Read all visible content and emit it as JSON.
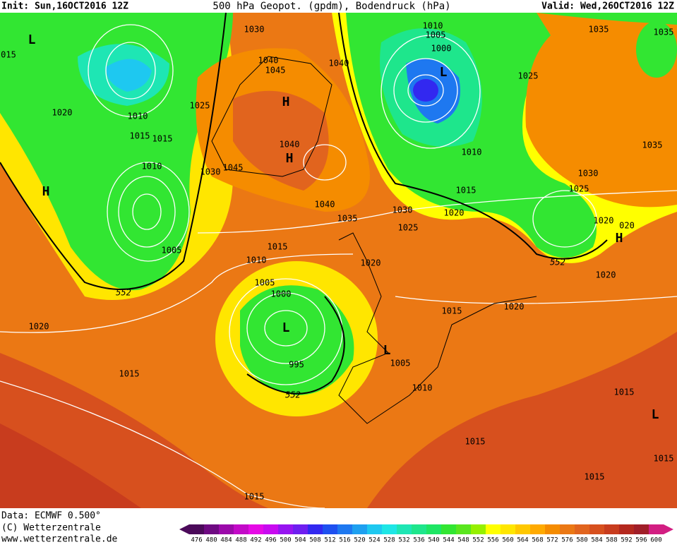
{
  "header": {
    "init": "Init: Sun,16OCT2016 12Z",
    "title": "500 hPa Geopot. (gpdm), Bodendruck (hPa)",
    "valid": "Valid: Wed,26OCT2016 12Z"
  },
  "footer": {
    "data": "Data: ECMWF  0.500°",
    "copyright": "(C) Wetterzentrale",
    "url": "www.wetterzentrale.de"
  },
  "colorbar": {
    "labels": [
      476,
      480,
      484,
      488,
      492,
      496,
      500,
      504,
      508,
      512,
      516,
      520,
      524,
      528,
      532,
      536,
      540,
      544,
      548,
      552,
      556,
      560,
      564,
      568,
      572,
      576,
      580,
      584,
      588,
      592,
      596,
      600
    ],
    "colors": [
      "#4b0a5a",
      "#6e0a82",
      "#9b0aaa",
      "#c30ac8",
      "#e60ae6",
      "#c80af0",
      "#9614f0",
      "#6e1ef0",
      "#3228f0",
      "#1e50f0",
      "#1e78f0",
      "#1ea0f0",
      "#1ec8f0",
      "#1ee6e6",
      "#1ee6b4",
      "#1ee68c",
      "#1ee664",
      "#32e632",
      "#5ae61e",
      "#96f000",
      "#ffff00",
      "#ffe600",
      "#ffc800",
      "#ffaa00",
      "#f58c00",
      "#eb7814",
      "#e1641e",
      "#d7501e",
      "#c83c1e",
      "#b4281e",
      "#a01e28",
      "#d21e82"
    ]
  },
  "isobar_labels": [
    "1020",
    "1010",
    "1015",
    "1015",
    "1010",
    "1025",
    "1030",
    "1045",
    "1040",
    "1045",
    "1040",
    "1040",
    "1030",
    "1010",
    "1005",
    "1000",
    "1025",
    "1035",
    "1035",
    "1035",
    "1030",
    "1025",
    "1020",
    "020",
    "1020",
    "1010",
    "1015",
    "1020",
    "1030",
    "1025",
    "1040",
    "1035",
    "1015",
    "1010",
    "1020",
    "1005",
    "1000",
    "995",
    "1005",
    "1010",
    "1015",
    "1020",
    "1005",
    "1020",
    "1015",
    "1015",
    "1015",
    "1015",
    "1015",
    "1015",
    "015"
  ],
  "contour_labels": [
    "552",
    "552",
    "552"
  ],
  "centers": [
    "L",
    "L",
    "L",
    "L",
    "L",
    "H",
    "H",
    "H",
    "H"
  ]
}
